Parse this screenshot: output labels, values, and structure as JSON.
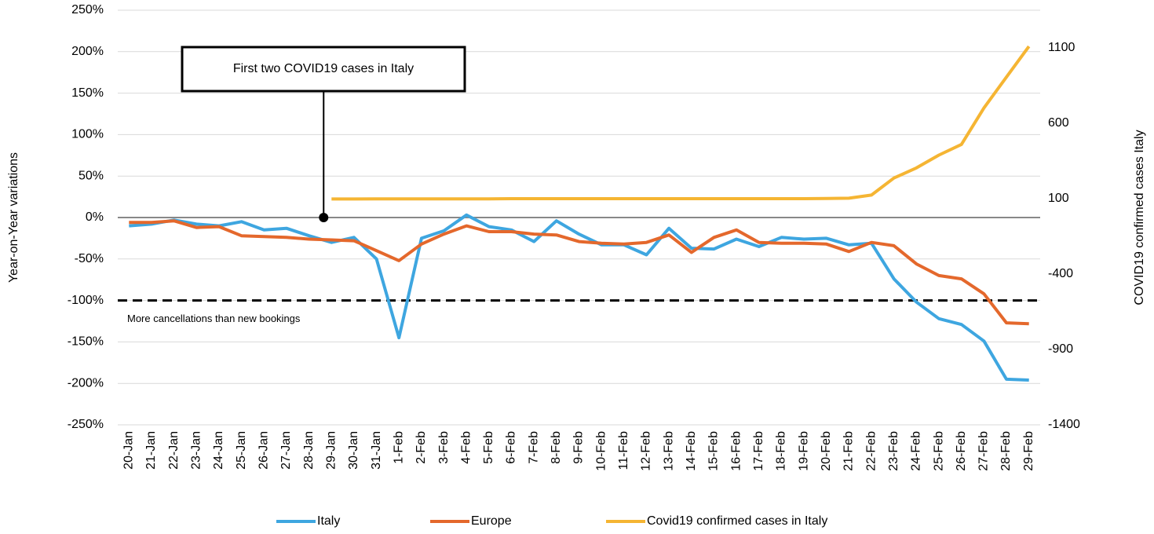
{
  "chart_data": {
    "type": "line",
    "categories": [
      "20-Jan",
      "21-Jan",
      "22-Jan",
      "23-Jan",
      "24-Jan",
      "25-Jan",
      "26-Jan",
      "27-Jan",
      "28-Jan",
      "29-Jan",
      "30-Jan",
      "31-Jan",
      "1-Feb",
      "2-Feb",
      "3-Feb",
      "4-Feb",
      "5-Feb",
      "6-Feb",
      "7-Feb",
      "8-Feb",
      "9-Feb",
      "10-Feb",
      "11-Feb",
      "12-Feb",
      "13-Feb",
      "14-Feb",
      "15-Feb",
      "16-Feb",
      "17-Feb",
      "18-Feb",
      "19-Feb",
      "20-Feb",
      "21-Feb",
      "22-Feb",
      "23-Feb",
      "24-Feb",
      "25-Feb",
      "26-Feb",
      "27-Feb",
      "28-Feb",
      "29-Feb"
    ],
    "series": [
      {
        "name": "Italy",
        "color": "#3ea6e0",
        "values": [
          -10,
          -8,
          -3,
          -8,
          -10,
          -5,
          -15,
          -13,
          -22,
          -30,
          -24,
          -50,
          -145,
          -25,
          -16,
          3,
          -11,
          -15,
          -29,
          -4,
          -20,
          -33,
          -33,
          -45,
          -13,
          -37,
          -38,
          -26,
          -35,
          -24,
          -26,
          -25,
          -33,
          -31,
          -74,
          -102,
          -122,
          -129,
          -149,
          -195,
          -196
        ]
      },
      {
        "name": "Europe",
        "color": "#e4682c",
        "values": [
          -6,
          -6,
          -4,
          -12,
          -11,
          -22,
          -23,
          -24,
          -26,
          -27,
          -28,
          -40,
          -52,
          -32,
          -20,
          -10,
          -17,
          -17,
          -20,
          -21,
          -29,
          -31,
          -32,
          -30,
          -21,
          -42,
          -24,
          -15,
          -30,
          -31,
          -31,
          -32,
          -41,
          -30,
          -34,
          -56,
          -70,
          -74,
          -92,
          -127,
          -128
        ]
      },
      {
        "name": "Covid19 confirmed cases in Italy",
        "color": "#f5b533",
        "axis": "y2",
        "values": [
          null,
          null,
          null,
          null,
          null,
          null,
          null,
          null,
          null,
          98,
          98,
          99,
          99,
          99,
          99,
          99,
          99,
          100,
          100,
          100,
          100,
          100,
          100,
          100,
          100,
          100,
          100,
          100,
          100,
          100,
          100,
          101,
          103,
          124,
          237,
          304,
          389,
          460,
          702,
          906,
          1110
        ]
      }
    ],
    "ylim": [
      -250,
      250
    ],
    "yticks": [
      {
        "value": -250,
        "label": "-250%"
      },
      {
        "value": -200,
        "label": "-200%"
      },
      {
        "value": -150,
        "label": "-150%"
      },
      {
        "value": -100,
        "label": "-100%"
      },
      {
        "value": -50,
        "label": "-50%"
      },
      {
        "value": 0,
        "label": "0%"
      },
      {
        "value": 50,
        "label": "50%"
      },
      {
        "value": 100,
        "label": "100%"
      },
      {
        "value": 150,
        "label": "150%"
      },
      {
        "value": 200,
        "label": "200%"
      },
      {
        "value": 250,
        "label": "250%"
      }
    ],
    "y2lim": [
      -1400,
      1350
    ],
    "y2ticks": [
      -1400,
      -900,
      -400,
      100,
      600,
      1100
    ],
    "ylabel": "Year-on-Year variations",
    "y2label": "COVID19 confirmed cases Italy",
    "grid": true,
    "legend": "bottom",
    "annotation": "First two COVID19 cases in Italy",
    "reference_line": {
      "value": -100,
      "label": "More cancellations than new bookings"
    }
  }
}
